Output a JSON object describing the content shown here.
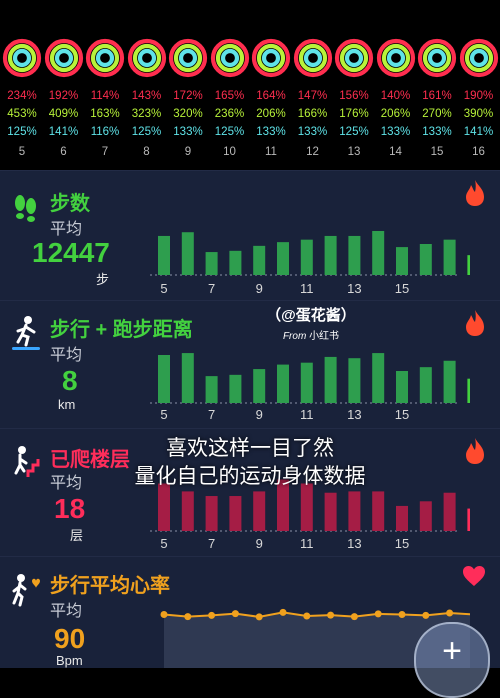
{
  "summary": {
    "days": [
      "5",
      "6",
      "7",
      "8",
      "9",
      "10",
      "11",
      "12",
      "13",
      "14",
      "15",
      "16"
    ],
    "move_pct": [
      "234%",
      "192%",
      "114%",
      "143%",
      "172%",
      "165%",
      "164%",
      "147%",
      "156%",
      "140%",
      "161%",
      "190%"
    ],
    "exercise_pct": [
      "453%",
      "409%",
      "163%",
      "323%",
      "320%",
      "236%",
      "206%",
      "166%",
      "176%",
      "206%",
      "270%",
      "390%"
    ],
    "stand_pct": [
      "125%",
      "141%",
      "116%",
      "125%",
      "133%",
      "125%",
      "133%",
      "133%",
      "125%",
      "133%",
      "133%",
      "141%"
    ],
    "colors": {
      "move": "#ff2e4f",
      "exercise": "#b8f33a",
      "stand": "#5fe3e8"
    }
  },
  "steps": {
    "title": "步数",
    "subtitle": "平均",
    "value": "12447",
    "unit": "步",
    "icon": "footsteps-icon",
    "flame_icon": "flame-icon",
    "x_labels": [
      "5",
      "7",
      "9",
      "11",
      "13",
      "15"
    ],
    "bars": [
      0.63,
      0.69,
      0.37,
      0.39,
      0.47,
      0.53,
      0.57,
      0.63,
      0.63,
      0.71,
      0.45,
      0.5,
      0.57,
      0.32
    ],
    "color": "#2e9e4e",
    "highlight_color": "#43d13f"
  },
  "distance": {
    "title": "步行 + 跑步距离",
    "subtitle": "平均",
    "value": "8",
    "unit": "km",
    "icon": "walker-icon",
    "x_labels": [
      "5",
      "7",
      "9",
      "11",
      "13",
      "15"
    ],
    "bars": [
      0.75,
      0.78,
      0.42,
      0.44,
      0.53,
      0.6,
      0.63,
      0.72,
      0.7,
      0.78,
      0.5,
      0.56,
      0.66,
      0.38
    ],
    "color": "#2e9e4e",
    "highlight_color": "#43d13f"
  },
  "floors": {
    "title": "已爬楼层",
    "subtitle": "平均",
    "value": "18",
    "unit": "层",
    "icon": "stairs-icon",
    "x_labels": [
      "5",
      "7",
      "9",
      "11",
      "13",
      "15"
    ],
    "bars": [
      0.72,
      0.6,
      0.53,
      0.53,
      0.6,
      0.78,
      0.72,
      0.58,
      0.6,
      0.6,
      0.38,
      0.45,
      0.58,
      0.34
    ],
    "color": "#a51d45",
    "highlight_color": "#ff2d5a"
  },
  "heart": {
    "title": "步行平均心率",
    "subtitle": "平均",
    "value": "90",
    "unit": "Bpm",
    "icon": "walking-heart-icon",
    "heart_icon": "heart-icon",
    "line": [
      0.55,
      0.48,
      0.52,
      0.58,
      0.47,
      0.62,
      0.5,
      0.53,
      0.48,
      0.57,
      0.55,
      0.52,
      0.6,
      0.55
    ],
    "color": "#f0a11e"
  },
  "overlay": {
    "line1": "喜欢这样一目了然",
    "line2": "量化自己的运动身体数据"
  },
  "watermark": {
    "handle": "（@蛋花酱）",
    "from": "From",
    "app": "小红书"
  },
  "fab": {
    "symbol": "+"
  }
}
